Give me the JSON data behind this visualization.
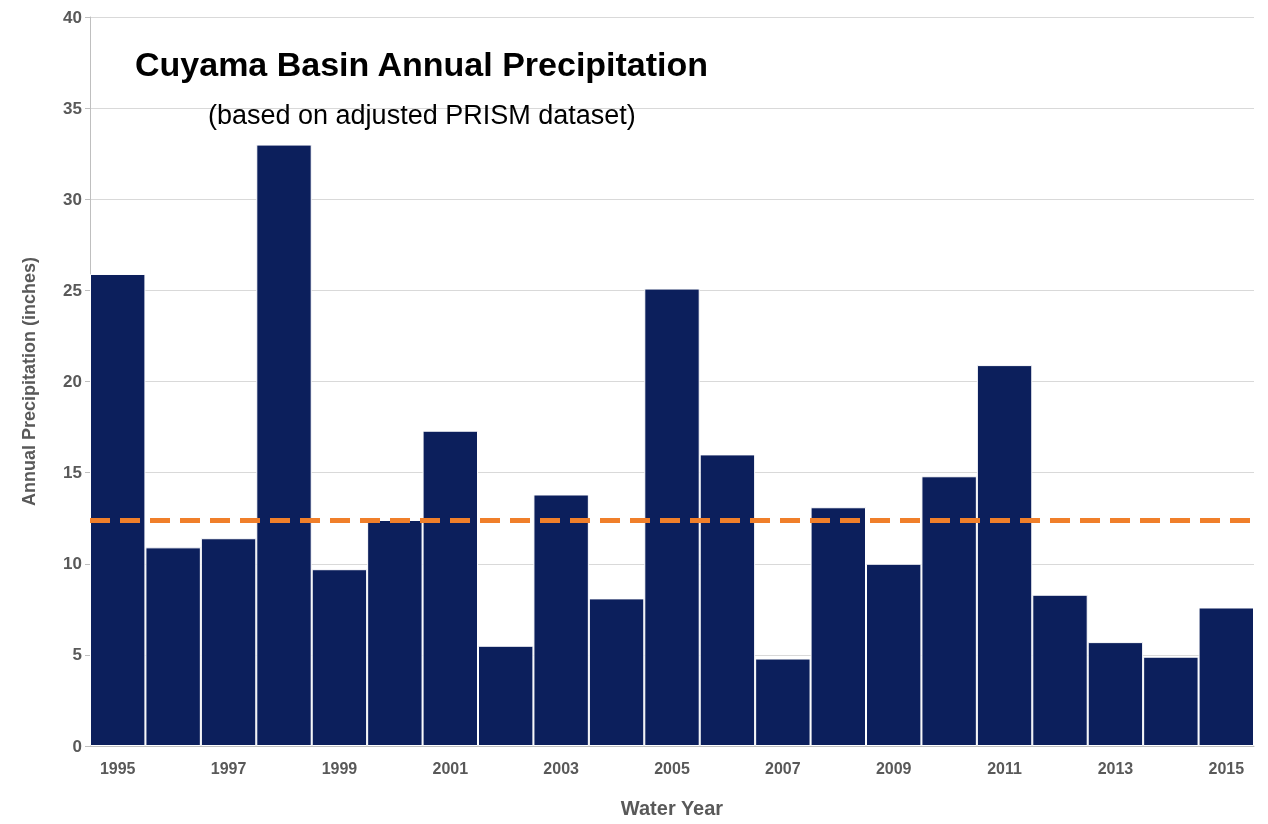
{
  "chart_data": {
    "type": "bar",
    "title": "Cuyama Basin Annual Precipitation",
    "subtitle": "(based on adjusted PRISM dataset)",
    "xlabel": "Water Year",
    "ylabel": "Annual Precipitation (inches)",
    "categories": [
      "1995",
      null,
      "1997",
      null,
      "1999",
      null,
      "2001",
      null,
      "2003",
      null,
      "2005",
      null,
      "2007",
      null,
      "2009",
      null,
      "2011",
      null,
      "2013",
      null,
      "2015"
    ],
    "values": [
      25.9,
      10.9,
      11.4,
      33.0,
      9.7,
      12.4,
      17.3,
      5.5,
      13.8,
      8.1,
      25.1,
      16.0,
      4.8,
      13.1,
      10.0,
      14.8,
      20.9,
      8.3,
      5.7,
      4.9,
      7.6
    ],
    "color": "#0c1f5c",
    "ylim": [
      0,
      40
    ],
    "yticks": [
      0,
      5,
      10,
      15,
      20,
      25,
      30,
      35,
      40
    ],
    "grid": "y",
    "ref_lines": [
      {
        "axis": "y",
        "value": 12.4,
        "color": "#f07f2a",
        "line_style": "dashed"
      }
    ]
  }
}
